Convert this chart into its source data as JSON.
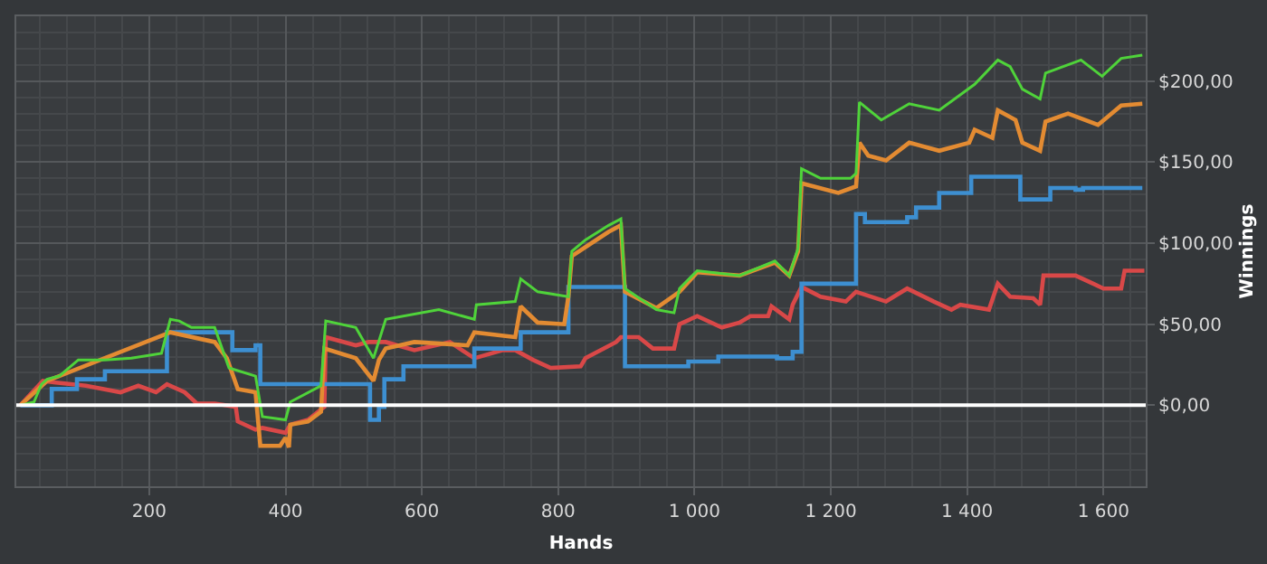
{
  "chart_data": {
    "type": "line",
    "xlabel": "Hands",
    "ylabel": "Winnings",
    "xlim": [
      5,
      1662
    ],
    "ylim": [
      -50,
      240
    ],
    "xticks": [
      200,
      400,
      600,
      800,
      {
        "value": 1000,
        "label": "1 000"
      },
      {
        "value": 1200,
        "label": "1 200"
      },
      {
        "value": 1400,
        "label": "1 400"
      },
      {
        "value": 1600,
        "label": "1 600"
      }
    ],
    "yticks": [
      {
        "value": 0,
        "label": "$0,00"
      },
      {
        "value": 50,
        "label": "$50,00"
      },
      {
        "value": 100,
        "label": "$100,00"
      },
      {
        "value": 150,
        "label": "$150,00"
      },
      {
        "value": 200,
        "label": "$200,00"
      }
    ],
    "grid": true,
    "ref_lines": [
      {
        "axis": "y",
        "value": 0,
        "color": "#ffffff"
      }
    ],
    "series": [
      {
        "color": "#d94848",
        "x": [
          11,
          44,
          63,
          107,
          158,
          184,
          210,
          226,
          252,
          270,
          296,
          327,
          330,
          356,
          366,
          400,
          407,
          433,
          457,
          459,
          503,
          522,
          547,
          589,
          641,
          677,
          719,
          737,
          763,
          789,
          833,
          840,
          885,
          892,
          918,
          939,
          970,
          978,
          1004,
          1040,
          1066,
          1082,
          1108,
          1113,
          1139,
          1144,
          1157,
          1185,
          1222,
          1237,
          1281,
          1312,
          1351,
          1377,
          1390,
          1432,
          1445,
          1463,
          1497,
          1507,
          1512,
          1559,
          1585,
          1600,
          1626,
          1631,
          1660
        ],
        "values": [
          0,
          15,
          14,
          12,
          8,
          12,
          8,
          13,
          8,
          1,
          1,
          -1,
          -10,
          -15,
          -14,
          -17,
          -12,
          -9,
          -1,
          42,
          37,
          39,
          39,
          34,
          39,
          29,
          34,
          34,
          28,
          23,
          24,
          29,
          39,
          42,
          42,
          35,
          35,
          50,
          55,
          48,
          51,
          55,
          55,
          61,
          53,
          62,
          73,
          67,
          64,
          70,
          64,
          72,
          64,
          59,
          62,
          59,
          75,
          67,
          66,
          62,
          80,
          80,
          75,
          72,
          72,
          83,
          83
        ]
      },
      {
        "type": "step",
        "color": "#3d8fd1",
        "x": [
          11,
          57,
          94,
          135,
          226,
          322,
          356,
          363,
          524,
          537,
          545,
          573,
          677,
          745,
          815,
          898,
          991,
          1035,
          1121,
          1144,
          1157,
          1237,
          1250,
          1312,
          1325,
          1359,
          1406,
          1478,
          1522,
          1559,
          1570,
          1657
        ],
        "values": [
          0,
          10,
          16,
          21,
          45,
          34,
          37,
          13,
          -9,
          -1,
          16,
          24,
          35,
          45,
          73,
          24,
          27,
          30,
          29,
          33,
          75,
          118,
          113,
          116,
          122,
          131,
          141,
          127,
          134,
          133,
          134,
          134
        ]
      },
      {
        "color": "#e38b32",
        "x": [
          11,
          50,
          231,
          296,
          314,
          330,
          356,
          363,
          392,
          400,
          405,
          407,
          433,
          452,
          457,
          503,
          529,
          537,
          547,
          589,
          667,
          677,
          737,
          745,
          770,
          809,
          815,
          820,
          874,
          892,
          898,
          944,
          978,
          1004,
          1066,
          1118,
          1139,
          1152,
          1157,
          1211,
          1237,
          1242,
          1255,
          1281,
          1315,
          1359,
          1403,
          1411,
          1437,
          1445,
          1471,
          1481,
          1507,
          1515,
          1548,
          1592,
          1626,
          1657
        ],
        "values": [
          0,
          15,
          45,
          39,
          29,
          10,
          8,
          -25,
          -25,
          -20,
          -26,
          -12,
          -10,
          -4,
          35,
          29,
          15,
          28,
          35,
          39,
          37,
          45,
          42,
          61,
          51,
          50,
          67,
          92,
          107,
          111,
          70,
          60,
          70,
          82,
          80,
          88,
          80,
          95,
          137,
          131,
          135,
          162,
          154,
          151,
          162,
          157,
          162,
          170,
          165,
          182,
          176,
          162,
          157,
          175,
          180,
          173,
          185,
          186
        ]
      },
      {
        "color": "#4fd33a",
        "x": [
          11,
          31,
          42,
          50,
          68,
          96,
          135,
          174,
          218,
          231,
          244,
          262,
          296,
          317,
          356,
          366,
          400,
          407,
          452,
          459,
          503,
          529,
          547,
          625,
          677,
          680,
          737,
          745,
          770,
          815,
          820,
          840,
          874,
          892,
          898,
          944,
          970,
          978,
          1004,
          1066,
          1118,
          1139,
          1152,
          1157,
          1185,
          1229,
          1237,
          1242,
          1274,
          1315,
          1359,
          1411,
          1445,
          1463,
          1481,
          1507,
          1515,
          1567,
          1598,
          1626,
          1657
        ],
        "values": [
          0,
          2,
          13,
          16,
          18,
          28,
          28,
          29,
          32,
          53,
          52,
          48,
          48,
          23,
          18,
          -7,
          -9,
          2,
          12,
          52,
          48,
          29,
          53,
          59,
          53,
          62,
          64,
          78,
          70,
          67,
          95,
          102,
          111,
          115,
          72,
          59,
          57,
          72,
          83,
          80,
          89,
          80,
          97,
          146,
          140,
          140,
          143,
          187,
          176,
          186,
          182,
          198,
          213,
          209,
          195,
          189,
          205,
          213,
          203,
          214,
          216
        ]
      }
    ]
  }
}
